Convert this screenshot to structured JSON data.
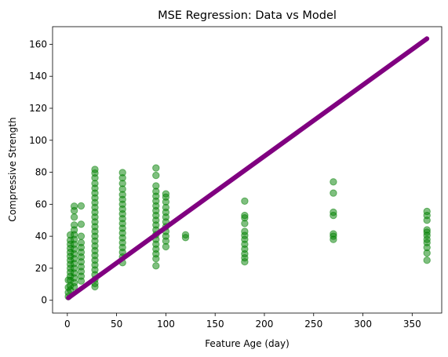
{
  "chart_data": {
    "type": "scatter",
    "title": "MSE Regression: Data vs Model",
    "xlabel": "Feature Age (day)",
    "ylabel": "Compressive Strength",
    "xlim": [
      -15,
      380
    ],
    "ylim": [
      -8,
      171
    ],
    "xticks": [
      0,
      50,
      100,
      150,
      200,
      250,
      300,
      350
    ],
    "yticks": [
      0,
      20,
      40,
      60,
      80,
      100,
      120,
      140,
      160
    ],
    "grid": false,
    "legend": "none",
    "series": [
      {
        "kind": "scatter",
        "color": "#008000",
        "opacity": 0.5,
        "groups": [
          {
            "x": 1,
            "y_min": 2,
            "y_max": 13
          },
          {
            "x": 3,
            "y_min": 6,
            "y_max": 41
          },
          {
            "x": 7,
            "y_min": 8,
            "y_max": 59
          },
          {
            "x": 14,
            "y_min": 12,
            "y_max": 59
          },
          {
            "x": 28,
            "y_min": 8,
            "y_max": 82
          },
          {
            "x": 56,
            "y_min": 23,
            "y_max": 80
          },
          {
            "x": 90,
            "y_min": 21,
            "y_max": 83
          },
          {
            "x": 100,
            "y_min": 33,
            "y_max": 66
          },
          {
            "x": 120,
            "y_min": 39,
            "y_max": 41
          },
          {
            "x": 180,
            "y_min": 24,
            "y_max": 62
          },
          {
            "x": 270,
            "y_min": 38,
            "y_max": 74
          },
          {
            "x": 365,
            "y_min": 25,
            "y_max": 56
          }
        ],
        "points": [
          {
            "x": 1,
            "y": 2.3
          },
          {
            "x": 1,
            "y": 4.9
          },
          {
            "x": 1,
            "y": 8.1
          },
          {
            "x": 1,
            "y": 12.6
          },
          {
            "x": 3,
            "y": 6.4
          },
          {
            "x": 3,
            "y": 9.0
          },
          {
            "x": 3,
            "y": 12.5
          },
          {
            "x": 3,
            "y": 15.0
          },
          {
            "x": 3,
            "y": 17.5
          },
          {
            "x": 3,
            "y": 20.0
          },
          {
            "x": 3,
            "y": 22.5
          },
          {
            "x": 3,
            "y": 25.0
          },
          {
            "x": 3,
            "y": 27.5
          },
          {
            "x": 3,
            "y": 30.0
          },
          {
            "x": 3,
            "y": 32.5
          },
          {
            "x": 3,
            "y": 35.0
          },
          {
            "x": 3,
            "y": 37.5
          },
          {
            "x": 3,
            "y": 40.8
          },
          {
            "x": 7,
            "y": 8.5
          },
          {
            "x": 7,
            "y": 11.0
          },
          {
            "x": 7,
            "y": 14.0
          },
          {
            "x": 7,
            "y": 17.0
          },
          {
            "x": 7,
            "y": 20.0
          },
          {
            "x": 7,
            "y": 23.0
          },
          {
            "x": 7,
            "y": 26.0
          },
          {
            "x": 7,
            "y": 29.0
          },
          {
            "x": 7,
            "y": 32.0
          },
          {
            "x": 7,
            "y": 35.0
          },
          {
            "x": 7,
            "y": 38.0
          },
          {
            "x": 7,
            "y": 41.0
          },
          {
            "x": 7,
            "y": 44.0
          },
          {
            "x": 7,
            "y": 47.0
          },
          {
            "x": 7,
            "y": 52.0
          },
          {
            "x": 7,
            "y": 56.0
          },
          {
            "x": 7,
            "y": 58.8
          },
          {
            "x": 14,
            "y": 12.0
          },
          {
            "x": 14,
            "y": 15.0
          },
          {
            "x": 14,
            "y": 18.0
          },
          {
            "x": 14,
            "y": 21.0
          },
          {
            "x": 14,
            "y": 24.0
          },
          {
            "x": 14,
            "y": 27.0
          },
          {
            "x": 14,
            "y": 30.0
          },
          {
            "x": 14,
            "y": 33.0
          },
          {
            "x": 14,
            "y": 36.0
          },
          {
            "x": 14,
            "y": 40.0
          },
          {
            "x": 14,
            "y": 47.5
          },
          {
            "x": 14,
            "y": 59.0
          },
          {
            "x": 28,
            "y": 8.5
          },
          {
            "x": 28,
            "y": 10.5
          },
          {
            "x": 28,
            "y": 13.0
          },
          {
            "x": 28,
            "y": 16.0
          },
          {
            "x": 28,
            "y": 19.0
          },
          {
            "x": 28,
            "y": 22.0
          },
          {
            "x": 28,
            "y": 25.0
          },
          {
            "x": 28,
            "y": 28.0
          },
          {
            "x": 28,
            "y": 31.0
          },
          {
            "x": 28,
            "y": 34.0
          },
          {
            "x": 28,
            "y": 37.0
          },
          {
            "x": 28,
            "y": 40.0
          },
          {
            "x": 28,
            "y": 43.0
          },
          {
            "x": 28,
            "y": 46.0
          },
          {
            "x": 28,
            "y": 49.0
          },
          {
            "x": 28,
            "y": 52.0
          },
          {
            "x": 28,
            "y": 55.0
          },
          {
            "x": 28,
            "y": 58.0
          },
          {
            "x": 28,
            "y": 61.0
          },
          {
            "x": 28,
            "y": 64.0
          },
          {
            "x": 28,
            "y": 67.0
          },
          {
            "x": 28,
            "y": 70.0
          },
          {
            "x": 28,
            "y": 73.0
          },
          {
            "x": 28,
            "y": 76.5
          },
          {
            "x": 28,
            "y": 79.5
          },
          {
            "x": 28,
            "y": 81.8
          },
          {
            "x": 56,
            "y": 23.5
          },
          {
            "x": 56,
            "y": 27.0
          },
          {
            "x": 56,
            "y": 30.0
          },
          {
            "x": 56,
            "y": 33.0
          },
          {
            "x": 56,
            "y": 36.0
          },
          {
            "x": 56,
            "y": 39.0
          },
          {
            "x": 56,
            "y": 42.0
          },
          {
            "x": 56,
            "y": 45.0
          },
          {
            "x": 56,
            "y": 48.0
          },
          {
            "x": 56,
            "y": 51.0
          },
          {
            "x": 56,
            "y": 54.0
          },
          {
            "x": 56,
            "y": 57.0
          },
          {
            "x": 56,
            "y": 60.0
          },
          {
            "x": 56,
            "y": 63.0
          },
          {
            "x": 56,
            "y": 66.0
          },
          {
            "x": 56,
            "y": 69.5
          },
          {
            "x": 56,
            "y": 73.0
          },
          {
            "x": 56,
            "y": 76.5
          },
          {
            "x": 56,
            "y": 79.8
          },
          {
            "x": 90,
            "y": 21.5
          },
          {
            "x": 90,
            "y": 26.0
          },
          {
            "x": 90,
            "y": 29.0
          },
          {
            "x": 90,
            "y": 32.0
          },
          {
            "x": 90,
            "y": 35.0
          },
          {
            "x": 90,
            "y": 38.0
          },
          {
            "x": 90,
            "y": 41.0
          },
          {
            "x": 90,
            "y": 44.0
          },
          {
            "x": 90,
            "y": 47.0
          },
          {
            "x": 90,
            "y": 50.0
          },
          {
            "x": 90,
            "y": 53.0
          },
          {
            "x": 90,
            "y": 56.0
          },
          {
            "x": 90,
            "y": 59.0
          },
          {
            "x": 90,
            "y": 62.0
          },
          {
            "x": 90,
            "y": 65.0
          },
          {
            "x": 90,
            "y": 68.0
          },
          {
            "x": 90,
            "y": 71.5
          },
          {
            "x": 90,
            "y": 78.0
          },
          {
            "x": 90,
            "y": 82.7
          },
          {
            "x": 100,
            "y": 33.5
          },
          {
            "x": 100,
            "y": 37.0
          },
          {
            "x": 100,
            "y": 40.0
          },
          {
            "x": 100,
            "y": 43.0
          },
          {
            "x": 100,
            "y": 46.0
          },
          {
            "x": 100,
            "y": 49.0
          },
          {
            "x": 100,
            "y": 52.0
          },
          {
            "x": 100,
            "y": 55.0
          },
          {
            "x": 100,
            "y": 58.0
          },
          {
            "x": 100,
            "y": 61.5
          },
          {
            "x": 100,
            "y": 64.5
          },
          {
            "x": 100,
            "y": 66.5
          },
          {
            "x": 120,
            "y": 39.2
          },
          {
            "x": 120,
            "y": 40.9
          },
          {
            "x": 180,
            "y": 24.0
          },
          {
            "x": 180,
            "y": 26.5
          },
          {
            "x": 180,
            "y": 29.0
          },
          {
            "x": 180,
            "y": 32.0
          },
          {
            "x": 180,
            "y": 35.0
          },
          {
            "x": 180,
            "y": 38.0
          },
          {
            "x": 180,
            "y": 40.5
          },
          {
            "x": 180,
            "y": 43.0
          },
          {
            "x": 180,
            "y": 48.0
          },
          {
            "x": 180,
            "y": 51.5
          },
          {
            "x": 180,
            "y": 53.0
          },
          {
            "x": 180,
            "y": 62.0
          },
          {
            "x": 270,
            "y": 38.0
          },
          {
            "x": 270,
            "y": 40.0
          },
          {
            "x": 270,
            "y": 41.5
          },
          {
            "x": 270,
            "y": 53.0
          },
          {
            "x": 270,
            "y": 55.0
          },
          {
            "x": 270,
            "y": 67.0
          },
          {
            "x": 270,
            "y": 74.0
          },
          {
            "x": 365,
            "y": 25.0
          },
          {
            "x": 365,
            "y": 29.5
          },
          {
            "x": 365,
            "y": 33.0
          },
          {
            "x": 365,
            "y": 36.0
          },
          {
            "x": 365,
            "y": 38.0
          },
          {
            "x": 365,
            "y": 40.5
          },
          {
            "x": 365,
            "y": 42.5
          },
          {
            "x": 365,
            "y": 44.0
          },
          {
            "x": 365,
            "y": 50.0
          },
          {
            "x": 365,
            "y": 53.0
          },
          {
            "x": 365,
            "y": 55.5
          }
        ]
      },
      {
        "kind": "line",
        "color": "#800080",
        "x": [
          1,
          365
        ],
        "y": [
          1.5,
          163.5
        ]
      }
    ]
  }
}
